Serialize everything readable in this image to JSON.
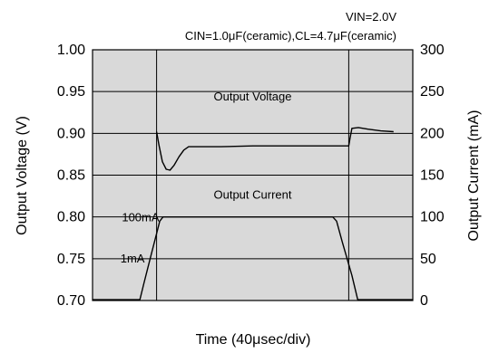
{
  "chart_data": {
    "type": "line",
    "title": "",
    "condition_line1": "VIN=2.0V",
    "condition_line2": "CIN=1.0μF(ceramic),CL=4.7μF(ceramic)",
    "xlabel": "Time (40μsec/div)",
    "ylabel_left": "Output Voltage (V)",
    "ylabel_right": "Output Current (mA)",
    "x_divisions": 10,
    "ylim_left": [
      0.7,
      1.0
    ],
    "ylim_right": [
      0,
      300
    ],
    "yticks_left": [
      "0.70",
      "0.75",
      "0.80",
      "0.85",
      "0.90",
      "0.95",
      "1.00"
    ],
    "yticks_right": [
      "0",
      "50",
      "100",
      "150",
      "200",
      "250",
      "300"
    ],
    "grid": true,
    "background": "#d9d9d9",
    "annotations": [
      {
        "text": "Output Voltage",
        "x": 5.0,
        "y": 0.945,
        "axis": "left"
      },
      {
        "text": "Output Current",
        "x": 5.0,
        "y": 0.827,
        "axis": "left"
      },
      {
        "text": "100mA",
        "x": 1.5,
        "y": 0.8,
        "axis": "left"
      },
      {
        "text": "1mA",
        "x": 1.25,
        "y": 0.751,
        "axis": "left"
      }
    ],
    "series": [
      {
        "axis": "left",
        "color": "#000000",
        "x": [
          0.0,
          1.9,
          2.0,
          2.08,
          2.18,
          2.3,
          2.42,
          2.55,
          2.7,
          2.85,
          3.0,
          3.3,
          4.0,
          5.0,
          6.0,
          7.0,
          7.5,
          8.0,
          8.04,
          8.1,
          8.3,
          8.6,
          9.0,
          9.4
        ],
        "values": [
          null,
          null,
          0.902,
          0.885,
          0.866,
          0.857,
          0.856,
          0.862,
          0.872,
          0.88,
          0.884,
          0.884,
          0.884,
          0.885,
          0.885,
          0.885,
          0.885,
          0.885,
          0.894,
          0.906,
          0.907,
          0.905,
          0.903,
          0.902
        ]
      },
      {
        "axis": "right",
        "color": "#000000",
        "x": [
          0.0,
          1.0,
          1.48,
          1.6,
          1.8,
          2.0,
          2.1,
          2.2,
          7.5,
          7.62,
          7.8,
          8.1,
          8.28,
          8.4,
          10.0
        ],
        "values": [
          1,
          1,
          1,
          20,
          50,
          80,
          95,
          100,
          100,
          95,
          70,
          30,
          1,
          1,
          1
        ]
      }
    ]
  }
}
